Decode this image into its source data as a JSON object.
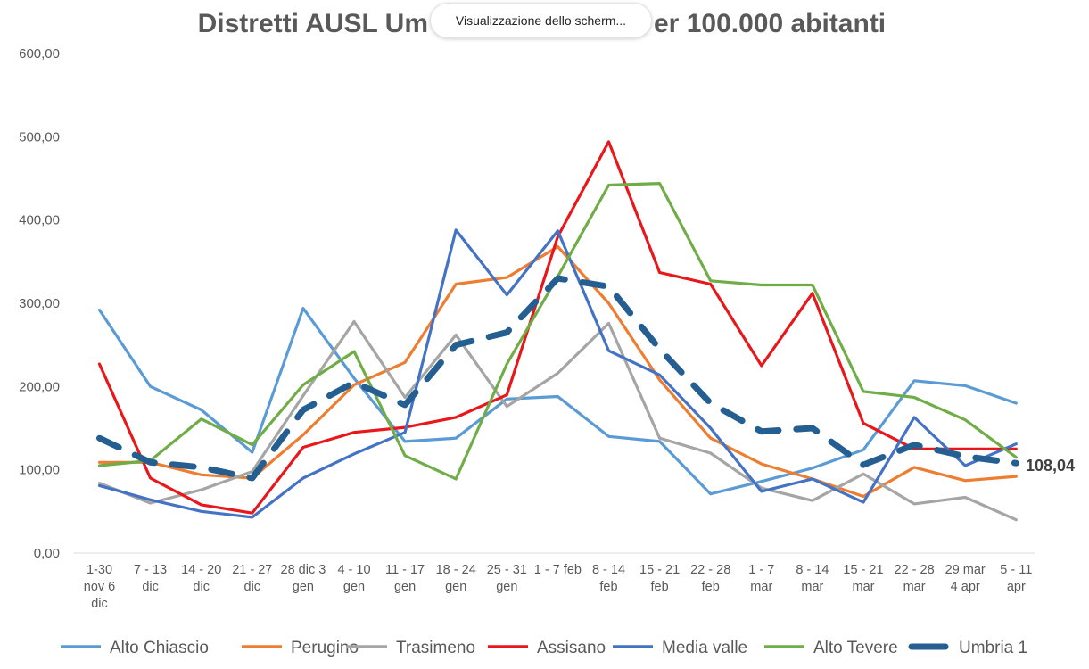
{
  "tooltip": {
    "text": "Visualizzazione dello scherm..."
  },
  "chart_data": {
    "type": "line",
    "title_left": "Distretti AUSL Um",
    "title_right": "er 100.000 abitanti",
    "ylim": [
      0,
      600
    ],
    "yticks": [
      "0,00",
      "100,00",
      "200,00",
      "300,00",
      "400,00",
      "500,00",
      "600,00"
    ],
    "categories": [
      [
        "1-30",
        "nov 6",
        "dic"
      ],
      [
        "7 - 13",
        "dic"
      ],
      [
        "14 - 20",
        "dic"
      ],
      [
        "21 - 27",
        "dic"
      ],
      [
        "28 dic 3",
        "gen"
      ],
      [
        "4 - 10",
        "gen"
      ],
      [
        "11 - 17",
        "gen"
      ],
      [
        "18 - 24",
        "gen"
      ],
      [
        "25 - 31",
        "gen"
      ],
      [
        "1 - 7 feb"
      ],
      [
        "8 - 14",
        "feb"
      ],
      [
        "15 - 21",
        "feb"
      ],
      [
        "22 - 28",
        "feb"
      ],
      [
        "1 - 7",
        "mar"
      ],
      [
        "8 - 14",
        "mar"
      ],
      [
        "15 - 21",
        "mar"
      ],
      [
        "22 - 28",
        "mar"
      ],
      [
        "29 mar",
        "4 apr"
      ],
      [
        "5 - 11",
        "apr"
      ]
    ],
    "series": [
      {
        "name": "Alto Chiascio",
        "color": "#5B9BD5",
        "dashed": false,
        "values": [
          292,
          200,
          172,
          121,
          294,
          210,
          134,
          138,
          185,
          188,
          140,
          134,
          71,
          86,
          102,
          124,
          207,
          201,
          180
        ]
      },
      {
        "name": "Perugino",
        "color": "#ED7D31",
        "dashed": false,
        "values": [
          109,
          109,
          94,
          90,
          142,
          202,
          229,
          323,
          331,
          368,
          300,
          208,
          138,
          107,
          89,
          68,
          103,
          87,
          92
        ]
      },
      {
        "name": "Trasimeno",
        "color": "#A5A5A5",
        "dashed": false,
        "values": [
          84,
          60,
          76,
          98,
          189,
          278,
          187,
          262,
          176,
          216,
          276,
          138,
          120,
          78,
          63,
          95,
          59,
          67,
          40
        ]
      },
      {
        "name": "Assisano",
        "color": "#E8171B",
        "dashed": false,
        "values": [
          227,
          90,
          58,
          48,
          127,
          145,
          151,
          163,
          190,
          380,
          494,
          337,
          323,
          225,
          312,
          156,
          125,
          125,
          125
        ]
      },
      {
        "name": "Media valle",
        "color": "#4472C4",
        "dashed": false,
        "values": [
          81,
          64,
          50,
          43,
          90,
          119,
          145,
          388,
          310,
          387,
          243,
          214,
          150,
          74,
          89,
          61,
          163,
          105,
          131
        ]
      },
      {
        "name": "Alto Tevere",
        "color": "#70AD47",
        "dashed": false,
        "values": [
          105,
          111,
          161,
          130,
          202,
          242,
          117,
          89,
          227,
          332,
          442,
          444,
          327,
          322,
          322,
          194,
          187,
          160,
          115
        ]
      },
      {
        "name": "Umbria 1",
        "color": "#255E91",
        "dashed": true,
        "values": [
          138,
          109,
          103,
          90,
          172,
          205,
          178,
          250,
          265,
          330,
          320,
          245,
          180,
          146,
          150,
          106,
          130,
          116,
          108.04
        ]
      }
    ],
    "end_label": "108,04"
  }
}
